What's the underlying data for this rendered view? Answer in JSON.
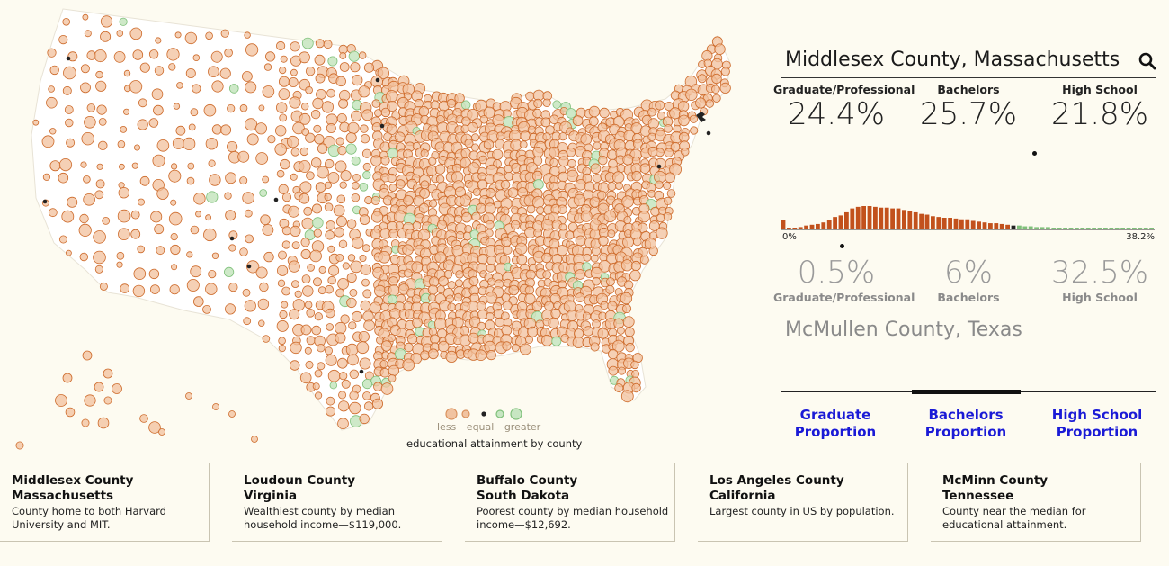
{
  "legend": {
    "labels": [
      "less",
      "equal",
      "greater"
    ],
    "caption": "educational attainment by county",
    "colors": {
      "less": "#d9915d",
      "less_fill": "#f1c3a0",
      "equal": "#222222",
      "greater": "#7fc07a",
      "greater_fill": "#c7e6c2"
    }
  },
  "map": {
    "title": "",
    "dominant_color": "#c85a1a",
    "tooltip_icon": "pointer-icon",
    "symbol_legend": [
      "less",
      "equal",
      "greater"
    ]
  },
  "selected": {
    "name": "Middlesex County, Massachusetts",
    "stats": [
      {
        "label": "Graduate/Professional",
        "value": "24.4%"
      },
      {
        "label": "Bachelors",
        "value": "25.7%"
      },
      {
        "label": "High School",
        "value": "21.8%"
      }
    ]
  },
  "compare": {
    "name": "McMullen County, Texas",
    "stats": [
      {
        "label": "Graduate/Professional",
        "value": "0.5%"
      },
      {
        "label": "Bachelors",
        "value": "6%"
      },
      {
        "label": "High School",
        "value": "32.5%"
      }
    ]
  },
  "histogram": {
    "min_label": "0%",
    "max_label": "38.2%",
    "colors": {
      "less": "#c2511c",
      "equal": "#222222",
      "greater": "#7fc07a"
    },
    "equal_index": 40,
    "values": [
      12,
      0,
      2,
      3,
      5,
      6,
      7,
      9,
      12,
      16,
      18,
      22,
      27,
      29,
      30,
      30,
      29,
      28,
      28,
      27,
      27,
      25,
      24,
      22,
      20,
      19,
      17,
      16,
      15,
      15,
      14,
      13,
      13,
      11,
      10,
      9,
      8,
      8,
      7,
      6,
      5,
      5,
      4,
      4,
      3,
      3,
      3,
      2,
      2,
      2,
      2,
      2,
      2,
      2,
      2,
      2,
      2,
      2,
      2,
      2,
      2,
      2,
      2,
      2,
      2
    ]
  },
  "search_icon": "search-icon",
  "tabs": [
    {
      "label": "Graduate Proportion",
      "active": false
    },
    {
      "label": "Bachelors Proportion",
      "active": true
    },
    {
      "label": "High School Proportion",
      "active": false
    }
  ],
  "cards": [
    {
      "name": "Middlesex County",
      "state": "Massachusetts",
      "desc": "County home to both Harvard University and MIT."
    },
    {
      "name": "Loudoun County",
      "state": "Virginia",
      "desc": "Wealthiest county by median household income—$119,000."
    },
    {
      "name": "Buffalo County",
      "state": "South Dakota",
      "desc": "Poorest county by median household income—$12,692."
    },
    {
      "name": "Los Angeles County",
      "state": "California",
      "desc": "Largest county in US by population."
    },
    {
      "name": "McMinn County",
      "state": "Tennessee",
      "desc": "County near the median for educational attainment."
    }
  ]
}
